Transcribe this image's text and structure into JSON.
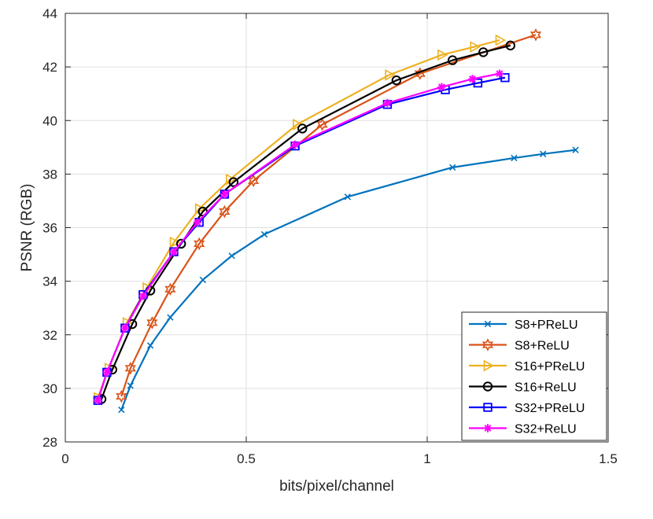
{
  "chart_data": {
    "type": "line",
    "title": "",
    "xlabel": "bits/pixel/channel",
    "ylabel": "PSNR (RGB)",
    "xlim": [
      0,
      1.5
    ],
    "ylim": [
      28,
      44
    ],
    "xticks": [
      0,
      0.5,
      1,
      1.5
    ],
    "xtick_labels": [
      "0",
      "0.5",
      "1",
      "1.5"
    ],
    "yticks": [
      28,
      30,
      32,
      34,
      36,
      38,
      40,
      42,
      44
    ],
    "ytick_labels": [
      "28",
      "30",
      "32",
      "34",
      "36",
      "38",
      "40",
      "42",
      "44"
    ],
    "grid": true,
    "legend_position": "bottom-right",
    "series": [
      {
        "name": "S8+PReLU",
        "color": "#0072BD",
        "marker": "x",
        "x": [
          0.155,
          0.18,
          0.235,
          0.29,
          0.38,
          0.46,
          0.55,
          0.78,
          1.07,
          1.24,
          1.32,
          1.41
        ],
        "y": [
          29.2,
          30.1,
          31.6,
          32.65,
          34.05,
          34.95,
          35.75,
          37.15,
          38.25,
          38.6,
          38.75,
          38.9
        ]
      },
      {
        "name": "S8+ReLU",
        "color": "#D95319",
        "marker": "hexagram",
        "x": [
          0.155,
          0.18,
          0.24,
          0.29,
          0.37,
          0.44,
          0.52,
          0.71,
          0.98,
          1.3
        ],
        "y": [
          29.7,
          30.75,
          32.45,
          33.7,
          35.4,
          36.6,
          37.75,
          39.85,
          41.75,
          43.2
        ]
      },
      {
        "name": "S16+PReLU",
        "color": "#EDB120",
        "marker": "triangle-right",
        "x": [
          0.09,
          0.12,
          0.17,
          0.225,
          0.3,
          0.37,
          0.455,
          0.64,
          0.895,
          1.04,
          1.13,
          1.2
        ],
        "y": [
          29.65,
          30.75,
          32.45,
          33.75,
          35.45,
          36.7,
          37.8,
          39.85,
          41.7,
          42.45,
          42.75,
          43.0
        ]
      },
      {
        "name": "S16+ReLU",
        "color": "#000000",
        "marker": "circle",
        "x": [
          0.1,
          0.13,
          0.185,
          0.235,
          0.32,
          0.38,
          0.465,
          0.655,
          0.915,
          1.07,
          1.155,
          1.23
        ],
        "y": [
          29.6,
          30.7,
          32.4,
          33.65,
          35.4,
          36.6,
          37.7,
          39.7,
          41.5,
          42.25,
          42.55,
          42.8
        ]
      },
      {
        "name": "S32+PReLU",
        "color": "#0000FF",
        "marker": "square",
        "x": [
          0.09,
          0.115,
          0.165,
          0.215,
          0.3,
          0.37,
          0.44,
          0.635,
          0.89,
          1.05,
          1.14,
          1.215
        ],
        "y": [
          29.55,
          30.6,
          32.25,
          33.5,
          35.1,
          36.2,
          37.25,
          39.05,
          40.6,
          41.15,
          41.4,
          41.6
        ]
      },
      {
        "name": "S32+ReLU",
        "color": "#FF00FF",
        "marker": "star",
        "x": [
          0.09,
          0.115,
          0.165,
          0.215,
          0.3,
          0.365,
          0.44,
          0.635,
          0.89,
          1.04,
          1.125,
          1.2
        ],
        "y": [
          29.55,
          30.6,
          32.25,
          33.45,
          35.1,
          36.2,
          37.25,
          39.1,
          40.65,
          41.25,
          41.55,
          41.75
        ]
      }
    ]
  }
}
